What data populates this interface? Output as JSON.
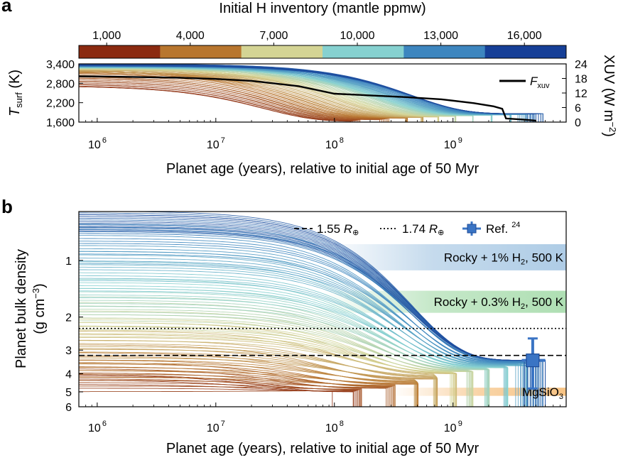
{
  "figure": {
    "panel_a": "a",
    "panel_b": "b"
  },
  "colorbar": {
    "title": "Initial H inventory (mantle ppmw)",
    "ticks": [
      "1,000",
      "4,000",
      "7,000",
      "10,000",
      "13,000",
      "16,000"
    ],
    "min": 0,
    "max": 17500,
    "colors": [
      "#8b2a10",
      "#b8762e",
      "#d4d494",
      "#86d1d0",
      "#3d86bf",
      "#163f97"
    ]
  },
  "chart_data": [
    {
      "type": "line",
      "panel": "a",
      "xscale": "log",
      "xlim": [
        700000,
        9000000000
      ],
      "x_ticks": [
        1000000,
        10000000,
        100000000,
        1000000000
      ],
      "x_tick_labels": [
        "10",
        "10",
        "10",
        "10"
      ],
      "x_tick_exponents": [
        "6",
        "7",
        "8",
        "9"
      ],
      "xlabel": "Planet age (years), relative to initial age of 50 Myr",
      "ylabel_main": "T",
      "ylabel_sub": "surf",
      "ylabel_unit": " (K)",
      "ylim": [
        1600,
        3400
      ],
      "y_ticks": [
        1600,
        2200,
        2800,
        3400
      ],
      "y_tick_labels": [
        "1,600",
        "2,200",
        "2,800",
        "3,400"
      ],
      "y2label": "XUV (W m",
      "y2label_sup": "−2",
      "y2label_end": ")",
      "y2lim": [
        0,
        24
      ],
      "y2_ticks": [
        0,
        6,
        12,
        18,
        24
      ],
      "y2_tick_labels": [
        "0",
        "6",
        "12",
        "18",
        "24"
      ],
      "legend_line_main": "F",
      "legend_line_sub": "xuv",
      "series_groups": [
        {
          "h_ppmw": 500,
          "T0": 2750,
          "Tf": 1620,
          "tau": 25000000,
          "t_end": 120000000
        },
        {
          "h_ppmw": 3000,
          "T0": 3150,
          "Tf": 1720,
          "tau": 40000000,
          "t_end": 350000000
        },
        {
          "h_ppmw": 6000,
          "T0": 3250,
          "Tf": 1760,
          "tau": 100000000,
          "t_end": 700000000
        },
        {
          "h_ppmw": 9000,
          "T0": 3300,
          "Tf": 1800,
          "tau": 200000000,
          "t_end": 1500000000
        },
        {
          "h_ppmw": 12000,
          "T0": 3330,
          "Tf": 1830,
          "tau": 300000000,
          "t_end": 3500000000
        },
        {
          "h_ppmw": 15000,
          "T0": 3370,
          "Tf": 1860,
          "tau": 450000000,
          "t_end": 5000000000
        }
      ],
      "fxuv": {
        "x": [
          700000,
          2000000,
          5000000,
          10000000,
          20000000,
          50000000,
          100000000,
          200000000,
          400000000,
          800000000,
          1500000000,
          2200000000,
          2600000000,
          2800000000,
          4000000000,
          5000000000
        ],
        "y": [
          18.9,
          18.6,
          18.3,
          17.8,
          17.0,
          14.8,
          11.7,
          11.0,
          10.3,
          9.4,
          7.8,
          6.5,
          5.5,
          1.5,
          1.0,
          0.6
        ]
      }
    },
    {
      "type": "line",
      "panel": "b",
      "xscale": "log",
      "xlim": [
        700000,
        9000000000
      ],
      "x_ticks": [
        1000000,
        10000000,
        100000000,
        1000000000
      ],
      "x_tick_labels": [
        "10",
        "10",
        "10",
        "10"
      ],
      "x_tick_exponents": [
        "6",
        "7",
        "8",
        "9"
      ],
      "xlabel": "Planet age (years), relative to initial age of 50 Myr",
      "ylabel": "Planet bulk density",
      "ylabel2": "(g cm",
      "ylabel2_sup": "−3",
      "ylabel2_end": ")",
      "yscale": "log",
      "ylim": [
        0.55,
        6
      ],
      "y_ticks": [
        1,
        2,
        3,
        4,
        5,
        6
      ],
      "y_tick_labels": [
        "1",
        "2",
        "3",
        "4",
        "5",
        "6"
      ],
      "legend": {
        "dashed_prefix": "1.55 ",
        "dashed_r": "R",
        "dotted_prefix": "1.74 ",
        "dotted_r": "R",
        "earth_symbol": "⊕",
        "ref_label": "Ref.",
        "ref_sup": "24"
      },
      "reference_lines": [
        {
          "style": "dashed",
          "density": 3.2
        },
        {
          "style": "dotted",
          "density": 2.3
        }
      ],
      "bands": [
        {
          "label": "Rocky + 1% H",
          "sub": "2",
          "end": ", 500 K",
          "y_from": 0.82,
          "y_to": 1.13,
          "x_start": 80000000,
          "color": "#3f86c3"
        },
        {
          "label": "Rocky + 0.3% H",
          "sub": "2",
          "end": ", 500 K",
          "y_from": 1.45,
          "y_to": 1.9,
          "x_start": 80000000,
          "color": "#3fb24a"
        },
        {
          "label": "MgSiO",
          "sub": "3",
          "end": "",
          "y_from": 4.75,
          "y_to": 5.25,
          "x_start": 300000000,
          "color": "#f5b86e"
        }
      ],
      "reference_point": {
        "x": 4700000000,
        "y": 3.4,
        "x_err": [
          3800000000,
          6000000000
        ],
        "y_err": [
          2.6,
          4.8
        ]
      },
      "series_groups": [
        {
          "h_ppmw": 500,
          "rho0": 4.6,
          "rhof": 5.0,
          "tau": 25000000,
          "t_end": 120000000
        },
        {
          "h_ppmw": 3000,
          "rho0": 3.7,
          "rhof": 4.6,
          "tau": 60000000,
          "t_end": 400000000
        },
        {
          "h_ppmw": 6000,
          "rho0": 2.5,
          "rhof": 4.0,
          "tau": 150000000,
          "t_end": 900000000
        },
        {
          "h_ppmw": 9000,
          "rho0": 1.7,
          "rhof": 3.8,
          "tau": 250000000,
          "t_end": 1800000000
        },
        {
          "h_ppmw": 12000,
          "rho0": 1.05,
          "rhof": 3.6,
          "tau": 350000000,
          "t_end": 4000000000
        },
        {
          "h_ppmw": 15000,
          "rho0": 0.62,
          "rhof": 3.4,
          "tau": 450000000,
          "t_end": 5000000000
        }
      ]
    }
  ]
}
